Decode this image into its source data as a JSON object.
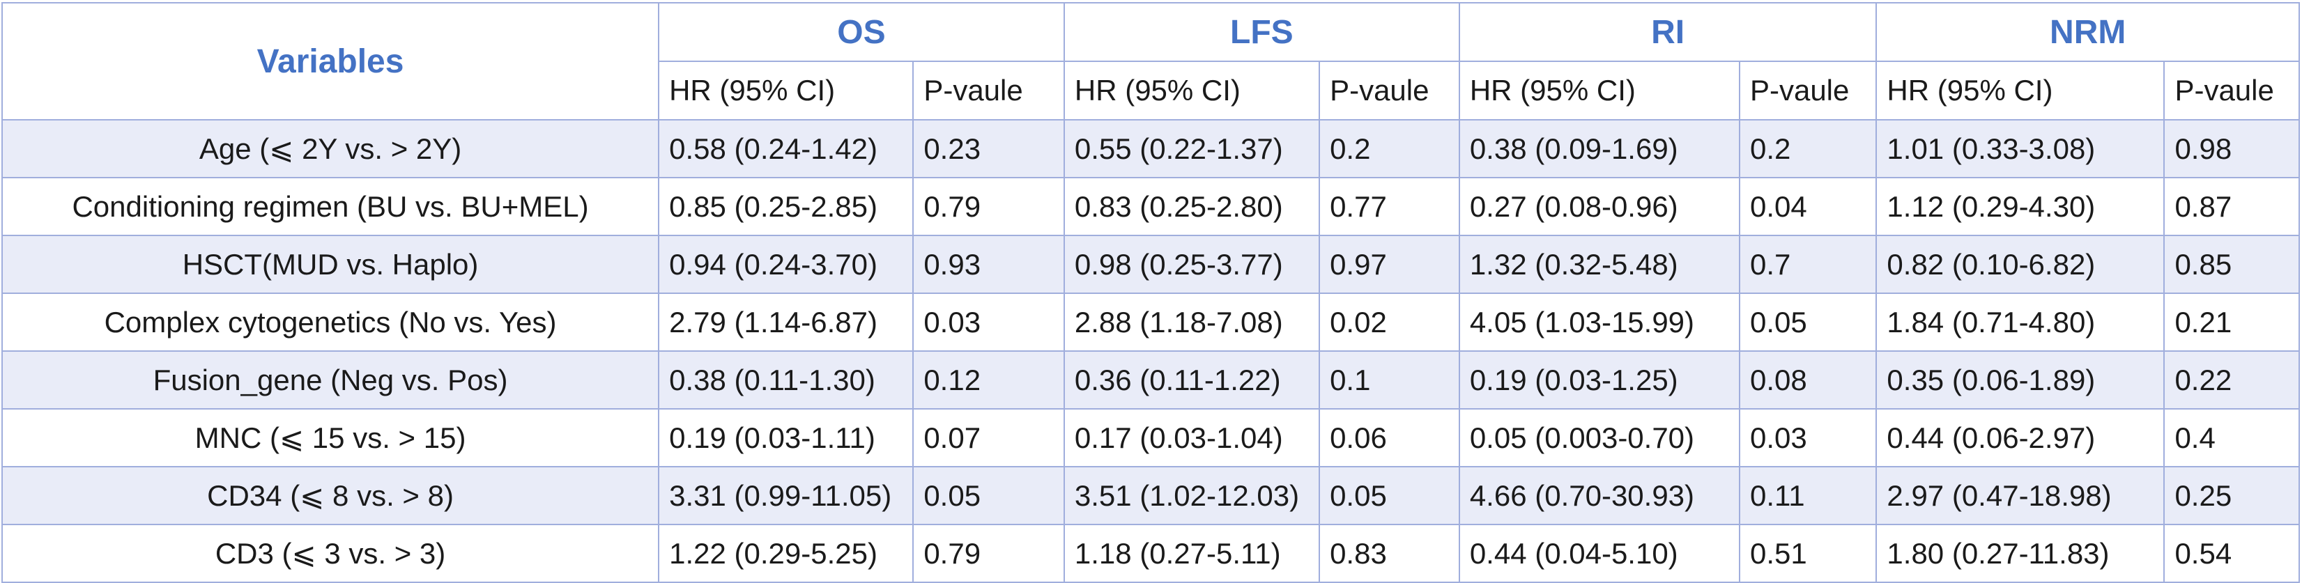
{
  "chart_data": {
    "type": "table",
    "header": {
      "variables": "Variables",
      "groups": [
        {
          "label": "OS"
        },
        {
          "label": "LFS"
        },
        {
          "label": "RI"
        },
        {
          "label": "NRM"
        }
      ],
      "sub": {
        "hr": "HR (95% CI)",
        "p": "P-vaule"
      }
    },
    "rows": [
      {
        "variable": "Age (⩽ 2Y vs. > 2Y)",
        "os_hr": "0.58 (0.24-1.42)",
        "os_p": "0.23",
        "lfs_hr": "0.55 (0.22-1.37)",
        "lfs_p": "0.2",
        "ri_hr": "0.38 (0.09-1.69)",
        "ri_p": "0.2",
        "nrm_hr": "1.01 (0.33-3.08)",
        "nrm_p": "0.98"
      },
      {
        "variable": "Conditioning regimen (BU vs. BU+MEL)",
        "os_hr": "0.85 (0.25-2.85)",
        "os_p": "0.79",
        "lfs_hr": "0.83 (0.25-2.80)",
        "lfs_p": "0.77",
        "ri_hr": "0.27 (0.08-0.96)",
        "ri_p": "0.04",
        "nrm_hr": "1.12 (0.29-4.30)",
        "nrm_p": "0.87"
      },
      {
        "variable": "HSCT(MUD vs. Haplo)",
        "os_hr": "0.94 (0.24-3.70)",
        "os_p": "0.93",
        "lfs_hr": "0.98 (0.25-3.77)",
        "lfs_p": "0.97",
        "ri_hr": "1.32 (0.32-5.48)",
        "ri_p": "0.7",
        "nrm_hr": "0.82 (0.10-6.82)",
        "nrm_p": "0.85"
      },
      {
        "variable": "Complex cytogenetics (No vs. Yes)",
        "os_hr": "2.79 (1.14-6.87)",
        "os_p": "0.03",
        "lfs_hr": "2.88 (1.18-7.08)",
        "lfs_p": "0.02",
        "ri_hr": "4.05 (1.03-15.99)",
        "ri_p": "0.05",
        "nrm_hr": "1.84 (0.71-4.80)",
        "nrm_p": "0.21"
      },
      {
        "variable": "Fusion_gene (Neg vs. Pos)",
        "os_hr": "0.38 (0.11-1.30)",
        "os_p": "0.12",
        "lfs_hr": "0.36 (0.11-1.22)",
        "lfs_p": "0.1",
        "ri_hr": "0.19 (0.03-1.25)",
        "ri_p": "0.08",
        "nrm_hr": "0.35 (0.06-1.89)",
        "nrm_p": "0.22"
      },
      {
        "variable": "MNC (⩽ 15 vs. > 15)",
        "os_hr": "0.19 (0.03-1.11)",
        "os_p": "0.07",
        "lfs_hr": "0.17 (0.03-1.04)",
        "lfs_p": "0.06",
        "ri_hr": "0.05 (0.003-0.70)",
        "ri_p": "0.03",
        "nrm_hr": "0.44 (0.06-2.97)",
        "nrm_p": "0.4"
      },
      {
        "variable": "CD34 (⩽ 8 vs. > 8)",
        "os_hr": "3.31 (0.99-11.05)",
        "os_p": "0.05",
        "lfs_hr": "3.51 (1.02-12.03)",
        "lfs_p": "0.05",
        "ri_hr": "4.66 (0.70-30.93)",
        "ri_p": "0.11",
        "nrm_hr": "2.97 (0.47-18.98)",
        "nrm_p": "0.25"
      },
      {
        "variable": "CD3 (⩽ 3 vs. > 3)",
        "os_hr": "1.22 (0.29-5.25)",
        "os_p": "0.79",
        "lfs_hr": "1.18 (0.27-5.11)",
        "lfs_p": "0.83",
        "ri_hr": "0.44 (0.04-5.10)",
        "ri_p": "0.51",
        "nrm_hr": "1.80 (0.27-11.83)",
        "nrm_p": "0.54"
      }
    ],
    "colors": {
      "header_text": "#4472c4",
      "border": "#a0aedd",
      "stripe_row": "#e9ecf8",
      "body_text": "#1a1a1a"
    }
  }
}
